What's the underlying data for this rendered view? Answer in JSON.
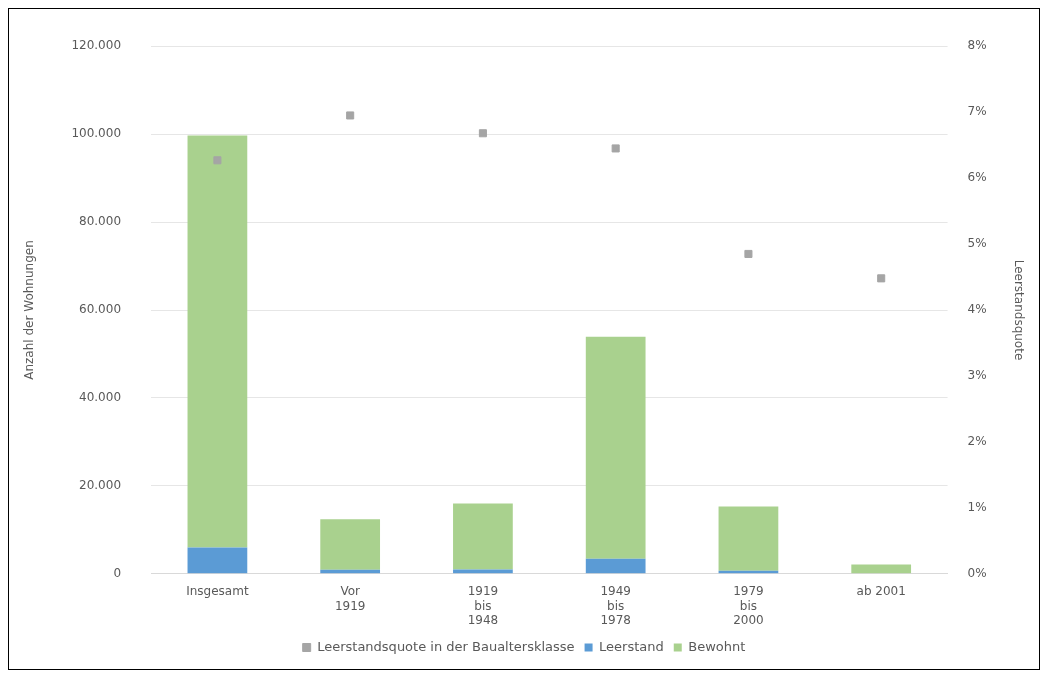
{
  "chart_data": {
    "type": "bar",
    "stacked": true,
    "ylabel": "Anzahl der Wohnungen",
    "y2label": "Leerstandsquote",
    "categories": [
      "Insgesamt",
      "Vor\n1919",
      "1919\nbis\n1948",
      "1949\nbis\n1978",
      "1979\nbis\n2000",
      "ab 2001"
    ],
    "series": [
      {
        "name": "Leerstand",
        "color": "#5b9bd5",
        "values": [
          6000,
          900,
          1000,
          3400,
          700,
          100
        ]
      },
      {
        "name": "Bewohnt",
        "color": "#a9d18e",
        "values": [
          93700,
          11500,
          15000,
          50500,
          14600,
          2000
        ]
      },
      {
        "name": "Leerstandsquote in der Baualtersklasse",
        "type": "scatter",
        "axis": "y2",
        "marker": "square",
        "color": "#a5a5a5",
        "values": [
          6.27,
          6.95,
          6.68,
          6.45,
          4.85,
          4.48
        ]
      }
    ],
    "ylim": [
      0,
      120000
    ],
    "yticks": [
      {
        "value": 0,
        "label": "0"
      },
      {
        "value": 20000,
        "label": "20.000"
      },
      {
        "value": 40000,
        "label": "40.000"
      },
      {
        "value": 60000,
        "label": "60.000"
      },
      {
        "value": 80000,
        "label": "80.000"
      },
      {
        "value": 100000,
        "label": "100.000"
      },
      {
        "value": 120000,
        "label": "120.000"
      }
    ],
    "y2lim": [
      0,
      8
    ],
    "y2ticks": [
      {
        "value": 0,
        "label": "0%"
      },
      {
        "value": 1,
        "label": "1%"
      },
      {
        "value": 2,
        "label": "2%"
      },
      {
        "value": 3,
        "label": "3%"
      },
      {
        "value": 4,
        "label": "4%"
      },
      {
        "value": 5,
        "label": "5%"
      },
      {
        "value": 6,
        "label": "6%"
      },
      {
        "value": 7,
        "label": "7%"
      },
      {
        "value": 8,
        "label": "8%"
      }
    ],
    "grid": "y",
    "legend": "bottom"
  }
}
